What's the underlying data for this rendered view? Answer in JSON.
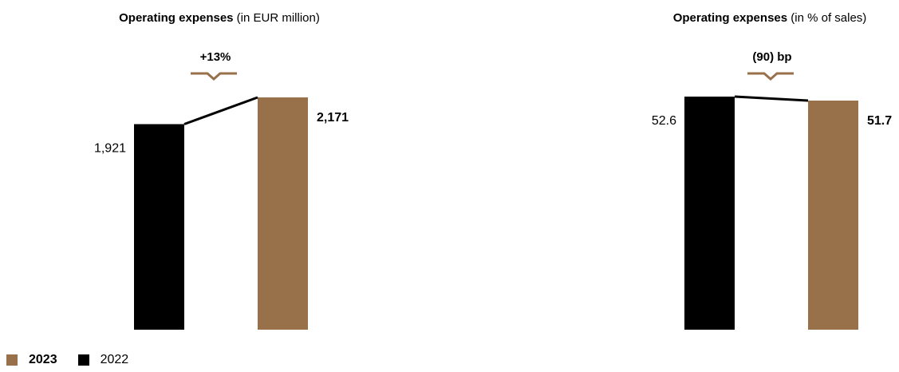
{
  "chart_data": [
    {
      "type": "bar",
      "title": "Operating expenses",
      "subtitle": "(in EUR million)",
      "categories": [
        "2022",
        "2023"
      ],
      "values": [
        1921,
        2171
      ],
      "value_labels": [
        "1,921",
        "2,171"
      ],
      "change_label": "+13%",
      "colors": [
        "#000000",
        "#98714a"
      ]
    },
    {
      "type": "bar",
      "title": "Operating expenses",
      "subtitle": "(in % of sales)",
      "categories": [
        "2022",
        "2023"
      ],
      "values": [
        52.6,
        51.7
      ],
      "value_labels": [
        "52.6",
        "51.7"
      ],
      "change_label": "(90) bp",
      "colors": [
        "#000000",
        "#98714a"
      ]
    }
  ],
  "legend": [
    {
      "label": "2023",
      "color": "#98714a",
      "bold": true
    },
    {
      "label": "2022",
      "color": "#000000",
      "bold": false
    }
  ],
  "accent_color": "#98714a"
}
